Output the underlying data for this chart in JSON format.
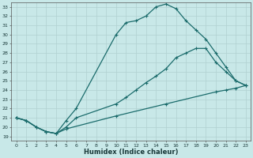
{
  "xlabel": "Humidex (Indice chaleur)",
  "bg_color": "#c8e8e8",
  "grid_color": "#b0d0d0",
  "line_color": "#1a6b6b",
  "xlim": [
    -0.5,
    23.5
  ],
  "ylim": [
    18.5,
    33.5
  ],
  "xticks": [
    0,
    1,
    2,
    3,
    4,
    5,
    6,
    7,
    8,
    9,
    10,
    11,
    12,
    13,
    14,
    15,
    16,
    17,
    18,
    19,
    20,
    21,
    22,
    23
  ],
  "yticks": [
    19,
    20,
    21,
    22,
    23,
    24,
    25,
    26,
    27,
    28,
    29,
    30,
    31,
    32,
    33
  ],
  "curve1_x": [
    0,
    1,
    2,
    3,
    4,
    5,
    6,
    10,
    11,
    12,
    13,
    14,
    15,
    16,
    17,
    18,
    19,
    20,
    21,
    22,
    23
  ],
  "curve1_y": [
    21.0,
    20.7,
    20.0,
    19.5,
    19.3,
    20.7,
    22.0,
    30.0,
    31.3,
    31.5,
    32.0,
    33.0,
    33.3,
    32.8,
    31.5,
    30.5,
    29.5,
    28.0,
    26.5,
    25.0,
    24.5
  ],
  "curve2_x": [
    0,
    1,
    2,
    3,
    4,
    5,
    6,
    10,
    11,
    12,
    13,
    14,
    15,
    16,
    17,
    18,
    19,
    20,
    21,
    22,
    23
  ],
  "curve2_y": [
    21.0,
    20.7,
    20.0,
    19.5,
    19.3,
    20.0,
    21.0,
    22.5,
    23.2,
    24.0,
    24.8,
    25.5,
    26.3,
    27.5,
    28.0,
    28.5,
    28.5,
    27.0,
    26.0,
    25.0,
    24.5
  ],
  "curve3_x": [
    0,
    1,
    2,
    3,
    4,
    5,
    10,
    15,
    20,
    21,
    22,
    23
  ],
  "curve3_y": [
    21.0,
    20.7,
    20.0,
    19.5,
    19.3,
    19.8,
    21.2,
    22.5,
    23.8,
    24.0,
    24.2,
    24.5
  ],
  "linewidth": 0.9,
  "markersize": 2.5
}
